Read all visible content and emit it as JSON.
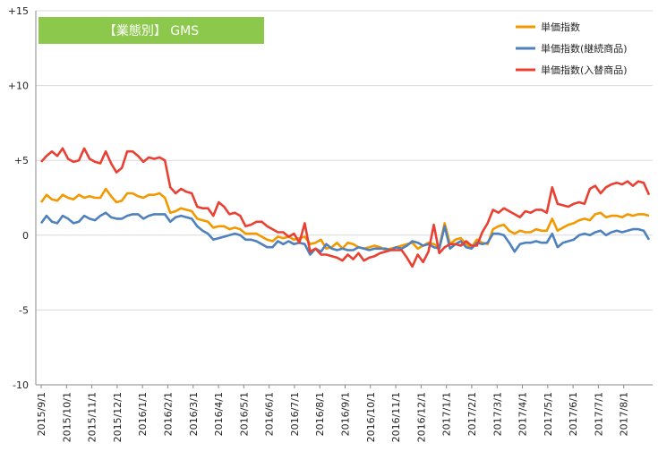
{
  "chart_data": {
    "type": "line",
    "title": "【業態別】 GMS",
    "ylim": [
      -10,
      15
    ],
    "yticks": [
      "-10",
      "-5",
      "0",
      "+5",
      "+10",
      "+15"
    ],
    "ytick_values": [
      -10,
      -5,
      0,
      5,
      10,
      15
    ],
    "grid": "horizontal",
    "legend_position": "top-right",
    "x_tick_labels": [
      "2015/9/1",
      "2015/10/1",
      "2015/11/1",
      "2015/12/1",
      "2016/1/1",
      "2016/2/1",
      "2016/3/1",
      "2016/4/1",
      "2016/5/1",
      "2016/6/1",
      "2016/7/1",
      "2016/8/1",
      "2016/9/1",
      "2016/10/1",
      "2016/11/1",
      "2016/12/1",
      "2017/1/1",
      "2017/2/1",
      "2017/3/1",
      "2017/4/1",
      "2017/5/1",
      "2017/6/1",
      "2017/7/1",
      "2017/8/1"
    ],
    "series": [
      {
        "name": "単価指数",
        "color": "#f39800",
        "values": [
          2.2,
          2.7,
          2.4,
          2.3,
          2.7,
          2.5,
          2.4,
          2.7,
          2.5,
          2.6,
          2.5,
          2.5,
          3.1,
          2.6,
          2.2,
          2.3,
          2.8,
          2.8,
          2.6,
          2.5,
          2.7,
          2.7,
          2.8,
          2.5,
          1.5,
          1.6,
          1.8,
          1.7,
          1.6,
          1.1,
          1.0,
          0.9,
          0.5,
          0.6,
          0.6,
          0.4,
          0.5,
          0.4,
          0.1,
          0.1,
          0.1,
          -0.1,
          -0.3,
          -0.4,
          -0.1,
          -0.2,
          -0.1,
          -0.3,
          -0.2,
          -0.1,
          -0.6,
          -0.5,
          -0.3,
          -0.9,
          -0.8,
          -0.5,
          -0.9,
          -0.5,
          -0.6,
          -0.8,
          -0.9,
          -0.8,
          -0.7,
          -0.8,
          -1.0,
          -0.9,
          -0.8,
          -0.7,
          -0.6,
          -0.5,
          -0.9,
          -0.7,
          -0.5,
          -0.6,
          -0.8,
          0.8,
          -0.6,
          -0.3,
          -0.2,
          -0.6,
          -0.8,
          -0.3,
          -0.5,
          -0.6,
          0.4,
          0.6,
          0.7,
          0.3,
          0.1,
          0.3,
          0.2,
          0.2,
          0.4,
          0.3,
          0.3,
          1.1,
          0.3,
          0.5,
          0.7,
          0.8,
          1.0,
          1.1,
          1.0,
          1.4,
          1.5,
          1.2,
          1.3,
          1.3,
          1.2,
          1.4,
          1.3,
          1.4,
          1.4,
          1.3
        ]
      },
      {
        "name": "単価指数(継続商品)",
        "color": "#4f81bd",
        "values": [
          0.8,
          1.3,
          0.9,
          0.8,
          1.3,
          1.1,
          0.8,
          0.9,
          1.3,
          1.1,
          1.0,
          1.3,
          1.5,
          1.2,
          1.1,
          1.1,
          1.3,
          1.4,
          1.4,
          1.1,
          1.3,
          1.4,
          1.4,
          1.4,
          0.9,
          1.2,
          1.3,
          1.2,
          1.1,
          0.6,
          0.3,
          0.1,
          -0.3,
          -0.2,
          -0.1,
          0.0,
          0.1,
          0.0,
          -0.3,
          -0.3,
          -0.4,
          -0.6,
          -0.8,
          -0.8,
          -0.4,
          -0.6,
          -0.4,
          -0.6,
          -0.5,
          -0.6,
          -1.3,
          -0.9,
          -1.1,
          -0.6,
          -0.9,
          -1.0,
          -0.9,
          -1.0,
          -1.0,
          -0.8,
          -0.9,
          -1.0,
          -0.9,
          -0.9,
          -0.9,
          -1.0,
          -0.8,
          -0.9,
          -0.7,
          -0.4,
          -0.5,
          -0.7,
          -0.6,
          -0.8,
          -0.9,
          0.6,
          -0.9,
          -0.6,
          -0.4,
          -0.8,
          -0.9,
          -0.5,
          -0.6,
          -0.5,
          0.1,
          0.1,
          0.0,
          -0.5,
          -1.1,
          -0.6,
          -0.5,
          -0.5,
          -0.4,
          -0.5,
          -0.5,
          0.1,
          -0.8,
          -0.5,
          -0.4,
          -0.3,
          0.0,
          0.1,
          0.0,
          0.2,
          0.3,
          0.0,
          0.2,
          0.3,
          0.2,
          0.3,
          0.4,
          0.4,
          0.3,
          -0.3
        ]
      },
      {
        "name": "単価指数(入替商品)",
        "color": "#e84133",
        "values": [
          4.9,
          5.3,
          5.6,
          5.3,
          5.8,
          5.1,
          4.9,
          5.0,
          5.8,
          5.1,
          4.9,
          4.8,
          5.6,
          4.8,
          4.2,
          4.5,
          5.6,
          5.6,
          5.3,
          4.9,
          5.2,
          5.1,
          5.2,
          5.0,
          3.2,
          2.8,
          3.1,
          2.9,
          2.8,
          1.9,
          1.8,
          1.8,
          1.3,
          2.2,
          1.9,
          1.4,
          1.5,
          1.3,
          0.6,
          0.7,
          0.9,
          0.9,
          0.6,
          0.4,
          0.2,
          0.2,
          -0.1,
          0.1,
          -0.5,
          0.8,
          -1.1,
          -0.9,
          -1.3,
          -1.3,
          -1.4,
          -1.5,
          -1.7,
          -1.3,
          -1.6,
          -1.2,
          -1.7,
          -1.5,
          -1.4,
          -1.2,
          -1.1,
          -1.0,
          -1.0,
          -1.0,
          -1.5,
          -2.1,
          -1.3,
          -1.8,
          -1.1,
          0.7,
          -1.2,
          -0.8,
          -0.6,
          -0.6,
          -0.7,
          -0.4,
          -0.7,
          -0.7,
          0.2,
          0.8,
          1.7,
          1.5,
          1.8,
          1.6,
          1.4,
          1.2,
          1.6,
          1.5,
          1.7,
          1.7,
          1.5,
          3.2,
          2.1,
          2.0,
          1.9,
          2.1,
          2.2,
          2.1,
          3.1,
          3.3,
          2.8,
          3.2,
          3.4,
          3.5,
          3.4,
          3.6,
          3.3,
          3.6,
          3.5,
          2.7
        ]
      }
    ]
  }
}
